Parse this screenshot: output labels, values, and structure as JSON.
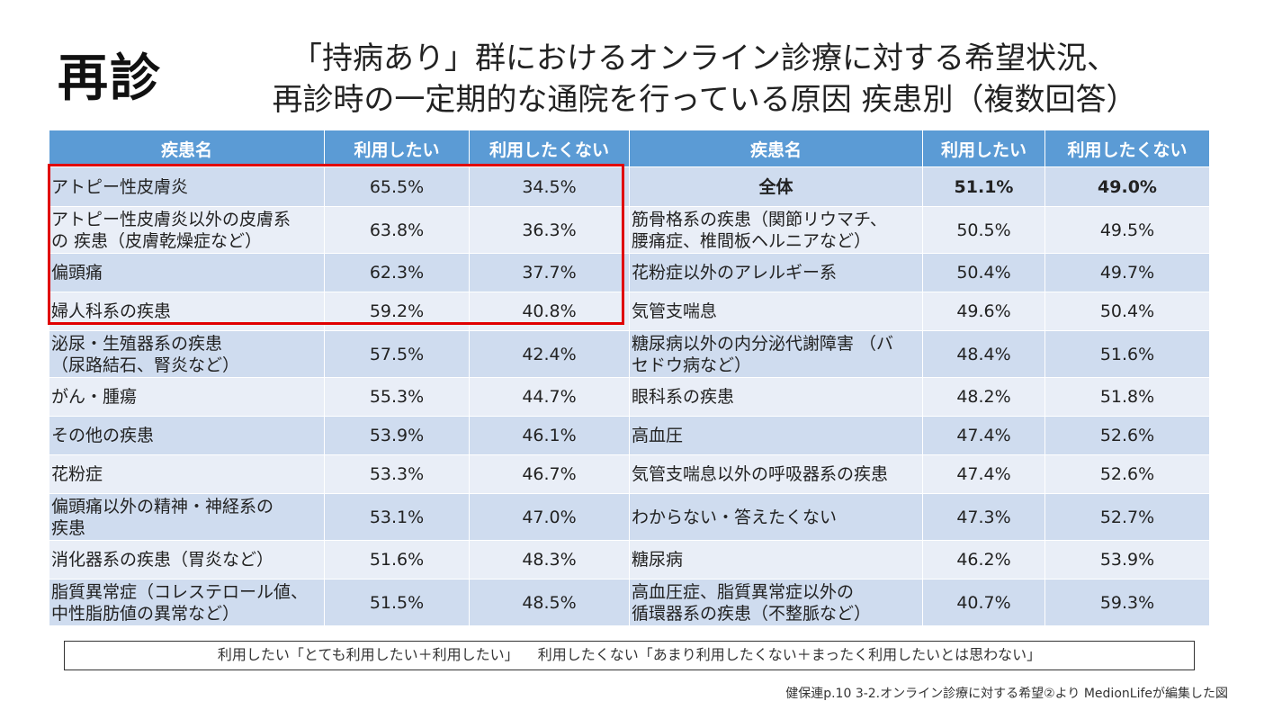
{
  "badge": "再診",
  "title": {
    "line1": "「持病あり」群におけるオンライン診療に対する希望状況、",
    "line2": "再診時の一定期的な通院を行っている原因 疾患別（複数回答）"
  },
  "table": {
    "headers": [
      "疾患名",
      "利用したい",
      "利用したくない",
      "疾患名",
      "利用したい",
      "利用したくない"
    ],
    "rows": [
      {
        "left": {
          "name": "アトピー性皮膚炎",
          "yes": "65.5%",
          "no": "34.5%"
        },
        "right": {
          "name": "全体",
          "yes": "51.1%",
          "no": "49.0%"
        }
      },
      {
        "left": {
          "name": "アトピー性皮膚炎以外の皮膚系\nの 疾患（皮膚乾燥症など）",
          "yes": "63.8%",
          "no": "36.3%"
        },
        "right": {
          "name": "筋骨格系の疾患（関節リウマチ、\n腰痛症、椎間板ヘルニアなど）",
          "yes": "50.5%",
          "no": "49.5%"
        }
      },
      {
        "left": {
          "name": "偏頭痛",
          "yes": "62.3%",
          "no": "37.7%"
        },
        "right": {
          "name": "花粉症以外のアレルギー系",
          "yes": "50.4%",
          "no": "49.7%"
        }
      },
      {
        "left": {
          "name": "婦人科系の疾患",
          "yes": "59.2%",
          "no": "40.8%"
        },
        "right": {
          "name": "気管支喘息",
          "yes": "49.6%",
          "no": "50.4%"
        }
      },
      {
        "left": {
          "name": "泌尿・生殖器系の疾患\n（尿路結石、腎炎など）",
          "yes": "57.5%",
          "no": "42.4%"
        },
        "right": {
          "name": "糖尿病以外の内分泌代謝障害 （バ\nセドウ病など）",
          "yes": "48.4%",
          "no": "51.6%"
        }
      },
      {
        "left": {
          "name": "がん・腫瘍",
          "yes": "55.3%",
          "no": "44.7%"
        },
        "right": {
          "name": "眼科系の疾患",
          "yes": "48.2%",
          "no": "51.8%"
        }
      },
      {
        "left": {
          "name": "その他の疾患",
          "yes": "53.9%",
          "no": "46.1%"
        },
        "right": {
          "name": "高血圧",
          "yes": "47.4%",
          "no": "52.6%"
        }
      },
      {
        "left": {
          "name": "花粉症",
          "yes": "53.3%",
          "no": "46.7%"
        },
        "right": {
          "name": "気管支喘息以外の呼吸器系の疾患",
          "yes": "47.4%",
          "no": "52.6%"
        }
      },
      {
        "left": {
          "name": "偏頭痛以外の精神・神経系の\n疾患",
          "yes": "53.1%",
          "no": "47.0%"
        },
        "right": {
          "name": "わからない・答えたくない",
          "yes": "47.3%",
          "no": "52.7%"
        }
      },
      {
        "left": {
          "name": "消化器系の疾患（胃炎など）",
          "yes": "51.6%",
          "no": "48.3%"
        },
        "right": {
          "name": "糖尿病",
          "yes": "46.2%",
          "no": "53.9%"
        }
      },
      {
        "left": {
          "name": "脂質異常症（コレステロール値、\n中性脂肪値の異常など）",
          "yes": "51.5%",
          "no": "48.5%"
        },
        "right": {
          "name": "高血圧症、脂質異常症以外の\n循環器系の疾患（不整脈など）",
          "yes": "40.7%",
          "no": "59.3%"
        }
      }
    ]
  },
  "legend": {
    "want": "利用したい「とても利用したい＋利用したい」",
    "not_want": "利用したくない「あまり利用したくない＋まったく利用したいとは思わない」"
  },
  "source": "健保連p.10 3-2.オンライン診療に対する希望②より MedionLifeが編集した図",
  "colors": {
    "header_bg": "#5b9bd5",
    "row_odd": "#cfdcef",
    "row_even": "#e9eef7",
    "highlight": "#e00000"
  }
}
